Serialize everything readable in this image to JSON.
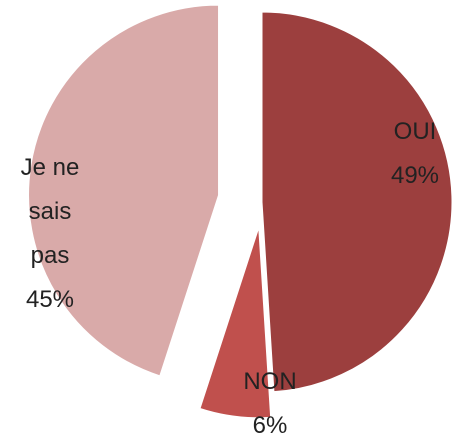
{
  "chart_data": {
    "type": "pie",
    "categories": [
      "OUI",
      "NON",
      "Je ne sais pas"
    ],
    "values": [
      49,
      6,
      45
    ],
    "value_labels": [
      "49%",
      "6%",
      "45%"
    ],
    "colors": [
      "#9c3f3e",
      "#c0504d",
      "#d9aaa9"
    ]
  }
}
